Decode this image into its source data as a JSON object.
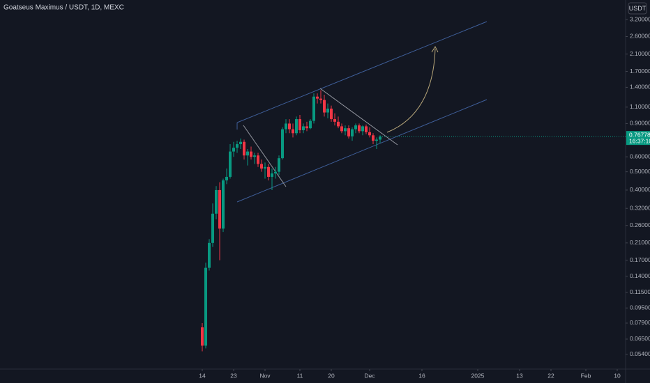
{
  "chart_data": {
    "type": "candlestick",
    "title": "Goatseus Maximus / USDT, 1D, MEXC",
    "currency": "USDT",
    "open": [
      0.075,
      0.06,
      0.155,
      0.21,
      0.3,
      0.4,
      0.25,
      0.45,
      0.47,
      0.64,
      0.67,
      0.7,
      0.72,
      0.61,
      0.64,
      0.6,
      0.61,
      0.55,
      0.52,
      0.53,
      0.47,
      0.49,
      0.5,
      0.59,
      0.84,
      0.9,
      0.84,
      0.8,
      0.95,
      0.83,
      0.87,
      0.85,
      0.93,
      1.25,
      1.22,
      1.2,
      1.03,
      1.08,
      0.95,
      0.92,
      0.87,
      0.82,
      0.85,
      0.77,
      0.84,
      0.88,
      0.82,
      0.87,
      0.81,
      0.78,
      0.73,
      0.74
    ],
    "high": [
      0.079,
      0.165,
      0.22,
      0.34,
      0.42,
      0.44,
      0.46,
      0.52,
      0.7,
      0.72,
      0.73,
      0.75,
      0.74,
      0.66,
      0.68,
      0.63,
      0.63,
      0.58,
      0.56,
      0.55,
      0.52,
      0.53,
      0.61,
      0.86,
      0.95,
      0.95,
      0.9,
      0.98,
      1.0,
      0.9,
      0.92,
      0.95,
      1.3,
      1.3,
      1.35,
      1.28,
      1.15,
      1.12,
      1.02,
      0.98,
      0.9,
      0.88,
      0.88,
      0.86,
      0.9,
      0.9,
      0.88,
      0.89,
      0.86,
      0.8,
      0.76,
      0.78
    ],
    "low": [
      0.056,
      0.058,
      0.15,
      0.2,
      0.28,
      0.17,
      0.24,
      0.43,
      0.46,
      0.6,
      0.63,
      0.66,
      0.58,
      0.54,
      0.58,
      0.55,
      0.53,
      0.5,
      0.46,
      0.45,
      0.4,
      0.46,
      0.48,
      0.58,
      0.8,
      0.8,
      0.76,
      0.78,
      0.8,
      0.8,
      0.82,
      0.84,
      0.9,
      1.15,
      1.15,
      0.98,
      0.96,
      0.92,
      0.88,
      0.85,
      0.8,
      0.78,
      0.75,
      0.73,
      0.8,
      0.8,
      0.78,
      0.79,
      0.76,
      0.7,
      0.66,
      0.71
    ],
    "close": [
      0.06,
      0.155,
      0.21,
      0.3,
      0.4,
      0.25,
      0.45,
      0.47,
      0.64,
      0.67,
      0.7,
      0.72,
      0.61,
      0.64,
      0.6,
      0.61,
      0.55,
      0.52,
      0.53,
      0.47,
      0.49,
      0.5,
      0.59,
      0.84,
      0.9,
      0.84,
      0.8,
      0.95,
      0.83,
      0.87,
      0.85,
      0.93,
      1.25,
      1.22,
      1.2,
      1.03,
      1.08,
      0.95,
      0.92,
      0.87,
      0.82,
      0.85,
      0.77,
      0.84,
      0.88,
      0.82,
      0.87,
      0.81,
      0.78,
      0.73,
      0.74,
      0.76778
    ],
    "up_color": "#089981",
    "down_color": "#f23645",
    "last_price": 0.76778,
    "countdown": "16:37:10",
    "log_scale": true,
    "ylim": [
      0.0451,
      4.06
    ],
    "yticks": [
      {
        "value": 3.2,
        "label": "3.20000"
      },
      {
        "value": 2.6,
        "label": "2.60000"
      },
      {
        "value": 2.1,
        "label": "2.10000"
      },
      {
        "value": 1.7,
        "label": "1.70000"
      },
      {
        "value": 1.4,
        "label": "1.40000"
      },
      {
        "value": 1.1,
        "label": "1.10000"
      },
      {
        "value": 0.9,
        "label": "0.90000"
      },
      {
        "value": 0.6,
        "label": "0.60000"
      },
      {
        "value": 0.5,
        "label": "0.50000"
      },
      {
        "value": 0.4,
        "label": "0.40000"
      },
      {
        "value": 0.32,
        "label": "0.32000"
      },
      {
        "value": 0.26,
        "label": "0.26000"
      },
      {
        "value": 0.21,
        "label": "0.21000"
      },
      {
        "value": 0.17,
        "label": "0.17000"
      },
      {
        "value": 0.14,
        "label": "0.14000"
      },
      {
        "value": 0.115,
        "label": "0.11500"
      },
      {
        "value": 0.095,
        "label": "0.09500"
      },
      {
        "value": 0.079,
        "label": "0.07900"
      },
      {
        "value": 0.065,
        "label": "0.06500"
      },
      {
        "value": 0.054,
        "label": "0.05400"
      }
    ],
    "xlim": [
      -58,
      121
    ],
    "xticks": [
      {
        "value": 0,
        "label": "14"
      },
      {
        "value": 9,
        "label": "23"
      },
      {
        "value": 18,
        "label": "Nov"
      },
      {
        "value": 28,
        "label": "11"
      },
      {
        "value": 37,
        "label": "20"
      },
      {
        "value": 48,
        "label": "Dec"
      },
      {
        "value": 63,
        "label": "16"
      },
      {
        "value": 79,
        "label": "2025"
      },
      {
        "value": 91,
        "label": "13"
      },
      {
        "value": 100,
        "label": "22"
      },
      {
        "value": 110,
        "label": "Feb"
      },
      {
        "value": 119,
        "label": "10"
      }
    ]
  }
}
